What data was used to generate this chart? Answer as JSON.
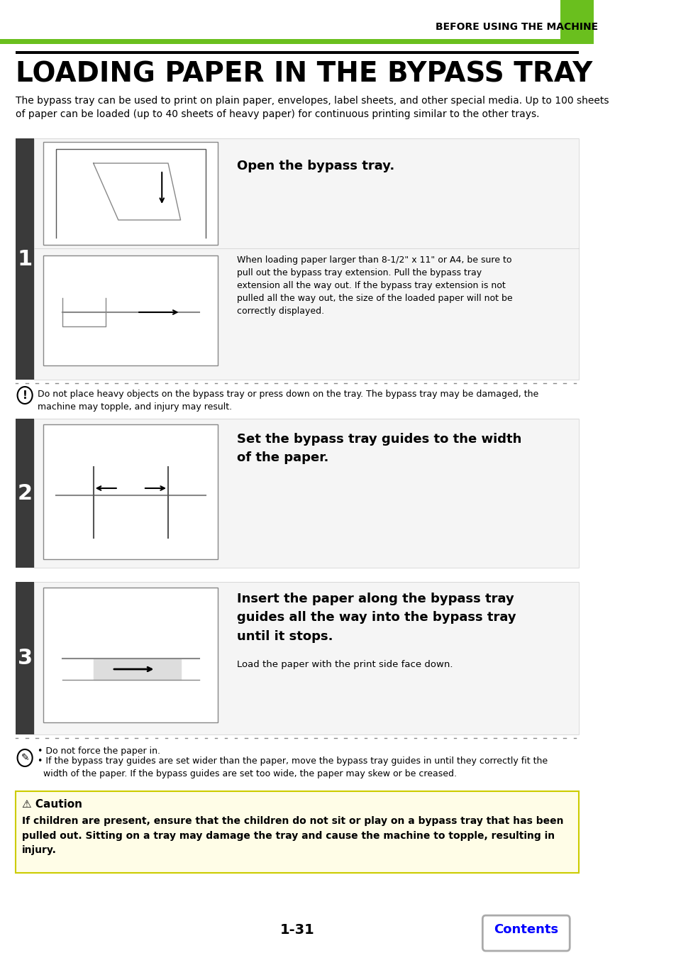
{
  "header_text": "BEFORE USING THE MACHINE",
  "header_green_color": "#6abf1e",
  "header_bar_color": "#3a3a3a",
  "title": "LOADING PAPER IN THE BYPASS TRAY",
  "intro_text": "The bypass tray can be used to print on plain paper, envelopes, label sheets, and other special media. Up to 100 sheets\nof paper can be loaded (up to 40 sheets of heavy paper) for continuous printing similar to the other trays.",
  "step1_label": "1",
  "step1_sidebar_color": "#3a3a3a",
  "step1a_instruction": "Open the bypass tray.",
  "step1b_text": "When loading paper larger than 8-1/2\" x 11\" or A4, be sure to\npull out the bypass tray extension. Pull the bypass tray\nextension all the way out. If the bypass tray extension is not\npulled all the way out, the size of the loaded paper will not be\ncorrectly displayed.",
  "caution1_text": "Do not place heavy objects on the bypass tray or press down on the tray. The bypass tray may be damaged, the\nmachine may topple, and injury may result.",
  "step2_label": "2",
  "step2_sidebar_color": "#3a3a3a",
  "step2_instruction": "Set the bypass tray guides to the width\nof the paper.",
  "step3_label": "3",
  "step3_sidebar_color": "#3a3a3a",
  "step3_instruction": "Insert the paper along the bypass tray\nguides all the way into the bypass tray\nuntil it stops.",
  "step3_sub": "Load the paper with the print side face down.",
  "caution3_text1": "• Do not force the paper in.",
  "caution3_text2": "• If the bypass tray guides are set wider than the paper, move the bypass tray guides in until they correctly fit the\n  width of the paper. If the bypass guides are set too wide, the paper may skew or be creased.",
  "caution_box_title": "⚠ Caution",
  "caution_box_text": "If children are present, ensure that the children do not sit or play on a bypass tray that has been\npulled out. Sitting on a tray may damage the tray and cause the machine to topple, resulting in\ninjury.",
  "page_number": "1-31",
  "contents_text": "Contents",
  "bg_color": "#ffffff",
  "text_color": "#000000",
  "green_color": "#6abf1e",
  "blue_color": "#0000ff",
  "gray_color": "#aaaaaa",
  "light_gray": "#f0f0f0",
  "dashed_color": "#888888"
}
